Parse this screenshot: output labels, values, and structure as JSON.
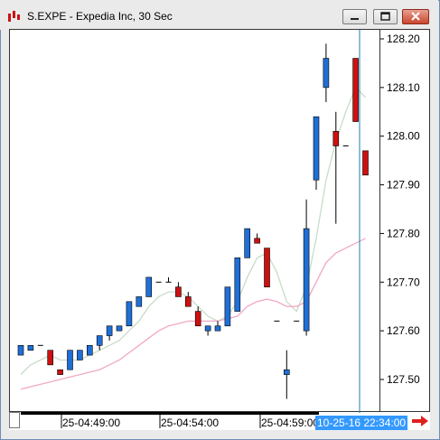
{
  "window": {
    "title": "S.EXPE - Expedia Inc, 30 Sec"
  },
  "icons": {
    "app": "chart-app-icon",
    "minimize": "minimize-icon",
    "restore": "restore-icon",
    "close": "close-icon",
    "scroll_right": "right-arrow-icon"
  },
  "colors": {
    "up_candle": "#1f6fd6",
    "down_candle": "#cc1111",
    "ma_fast": "#c8dcc8",
    "ma_slow": "#f2a8c6",
    "cursor_line": "#1a7fb0",
    "cursor_label_bg": "#3399ff"
  },
  "x_axis": {
    "cursor_label": "10-25-16 22:34:00"
  },
  "chart_data": {
    "type": "candlestick",
    "title": "S.EXPE - Expedia Inc, 30 Sec",
    "y_ticks": [
      "128.20",
      "128.10",
      "128.00",
      "127.90",
      "127.80",
      "127.70",
      "127.60",
      "127.50"
    ],
    "x_ticks": [
      "25-04:49:00",
      "25-04:54:00",
      "25-04:59:00"
    ],
    "ylim": [
      127.46,
      128.22
    ],
    "grid": false,
    "candles": [
      {
        "o": 127.55,
        "h": 127.57,
        "l": 127.55,
        "c": 127.57
      },
      {
        "o": 127.56,
        "h": 127.57,
        "l": 127.56,
        "c": 127.57
      },
      {
        "o": 127.57,
        "h": 127.57,
        "l": 127.57,
        "c": 127.57
      },
      {
        "o": 127.56,
        "h": 127.56,
        "l": 127.53,
        "c": 127.53
      },
      {
        "o": 127.52,
        "h": 127.52,
        "l": 127.51,
        "c": 127.51
      },
      {
        "o": 127.52,
        "h": 127.56,
        "l": 127.52,
        "c": 127.56
      },
      {
        "o": 127.54,
        "h": 127.56,
        "l": 127.54,
        "c": 127.56
      },
      {
        "o": 127.55,
        "h": 127.57,
        "l": 127.55,
        "c": 127.57
      },
      {
        "o": 127.57,
        "h": 127.59,
        "l": 127.56,
        "c": 127.59
      },
      {
        "o": 127.59,
        "h": 127.61,
        "l": 127.58,
        "c": 127.61
      },
      {
        "o": 127.6,
        "h": 127.61,
        "l": 127.6,
        "c": 127.61
      },
      {
        "o": 127.61,
        "h": 127.66,
        "l": 127.61,
        "c": 127.66
      },
      {
        "o": 127.65,
        "h": 127.67,
        "l": 127.65,
        "c": 127.67
      },
      {
        "o": 127.67,
        "h": 127.71,
        "l": 127.67,
        "c": 127.71
      },
      {
        "o": 127.7,
        "h": 127.7,
        "l": 127.7,
        "c": 127.7
      },
      {
        "o": 127.7,
        "h": 127.71,
        "l": 127.7,
        "c": 127.7
      },
      {
        "o": 127.69,
        "h": 127.7,
        "l": 127.67,
        "c": 127.67
      },
      {
        "o": 127.67,
        "h": 127.68,
        "l": 127.65,
        "c": 127.65
      },
      {
        "o": 127.64,
        "h": 127.65,
        "l": 127.61,
        "c": 127.61
      },
      {
        "o": 127.6,
        "h": 127.61,
        "l": 127.59,
        "c": 127.61
      },
      {
        "o": 127.6,
        "h": 127.62,
        "l": 127.6,
        "c": 127.61
      },
      {
        "o": 127.61,
        "h": 127.69,
        "l": 127.61,
        "c": 127.69
      },
      {
        "o": 127.64,
        "h": 127.75,
        "l": 127.64,
        "c": 127.75
      },
      {
        "o": 127.75,
        "h": 127.81,
        "l": 127.75,
        "c": 127.81
      },
      {
        "o": 127.79,
        "h": 127.8,
        "l": 127.78,
        "c": 127.78
      },
      {
        "o": 127.77,
        "h": 127.77,
        "l": 127.69,
        "c": 127.69
      },
      {
        "o": 127.62,
        "h": 127.62,
        "l": 127.62,
        "c": 127.62
      },
      {
        "o": 127.51,
        "h": 127.56,
        "l": 127.46,
        "c": 127.52
      },
      {
        "o": 127.62,
        "h": 127.62,
        "l": 127.62,
        "c": 127.62
      },
      {
        "o": 127.6,
        "h": 127.87,
        "l": 127.59,
        "c": 127.81
      },
      {
        "o": 127.91,
        "h": 128.04,
        "l": 127.89,
        "c": 128.04
      },
      {
        "o": 128.1,
        "h": 128.19,
        "l": 128.07,
        "c": 128.16
      },
      {
        "o": 128.01,
        "h": 128.05,
        "l": 127.82,
        "c": 127.98
      },
      {
        "o": 127.98,
        "h": 127.98,
        "l": 127.98,
        "c": 127.98
      },
      {
        "o": 128.16,
        "h": 128.16,
        "l": 128.03,
        "c": 128.03
      },
      {
        "o": 127.97,
        "h": 127.97,
        "l": 127.92,
        "c": 127.92
      }
    ],
    "series": [
      {
        "values": [
          127.51,
          127.53,
          127.54,
          127.55,
          127.54,
          127.54,
          127.54,
          127.55,
          127.56,
          127.57,
          127.58,
          127.6,
          127.62,
          127.65,
          127.67,
          127.68,
          127.68,
          127.67,
          127.65,
          127.63,
          127.62,
          127.63,
          127.66,
          127.71,
          127.75,
          127.76,
          127.72,
          127.66,
          127.64,
          127.69,
          127.79,
          127.91,
          127.99,
          128.05,
          128.1,
          128.08
        ]
      },
      {
        "values": [
          127.48,
          127.485,
          127.49,
          127.495,
          127.5,
          127.505,
          127.51,
          127.515,
          127.52,
          127.53,
          127.54,
          127.555,
          127.57,
          127.585,
          127.6,
          127.61,
          127.615,
          127.62,
          127.62,
          127.62,
          127.62,
          127.625,
          127.63,
          127.65,
          127.66,
          127.665,
          127.66,
          127.65,
          127.65,
          127.66,
          127.7,
          127.74,
          127.76,
          127.77,
          127.78,
          127.79
        ]
      }
    ]
  }
}
